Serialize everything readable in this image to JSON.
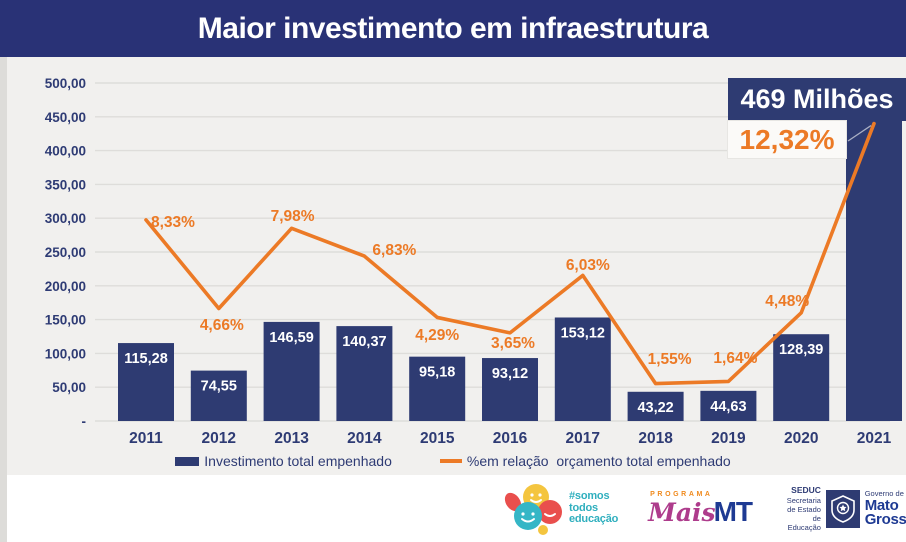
{
  "header": {
    "title": "Maior investimento em infraestrutura"
  },
  "chart_data": {
    "type": "bar",
    "subtype": "combo-bar-line",
    "title": "Maior investimento em infraestrutura",
    "categories": [
      "2011",
      "2012",
      "2013",
      "2014",
      "2015",
      "2016",
      "2017",
      "2018",
      "2019",
      "2020",
      "2021"
    ],
    "series": [
      {
        "name": "Investimento total empenhado",
        "type": "bar",
        "values": [
          115.28,
          74.55,
          146.59,
          140.37,
          95.18,
          93.12,
          153.12,
          43.22,
          44.63,
          128.39,
          469
        ],
        "labels": [
          "115,28",
          "74,55",
          "146,59",
          "140,37",
          "95,18",
          "93,12",
          "153,12",
          "43,22",
          "44,63",
          "128,39",
          ""
        ]
      },
      {
        "name": "%em relação  orçamento total empenhado",
        "type": "line",
        "values": [
          8.33,
          4.66,
          7.98,
          6.83,
          4.29,
          3.65,
          6.03,
          1.55,
          1.64,
          4.48,
          12.32
        ],
        "labels": [
          "8,33%",
          "4,66%",
          "7,98%",
          "6,83%",
          "4,29%",
          "3,65%",
          "6,03%",
          "1,55%",
          "1,64%",
          "4,48%",
          ""
        ]
      }
    ],
    "y_axis": {
      "min": 0,
      "max": 500,
      "tick_labels": [
        "500,00",
        "450,00",
        "400,00",
        "350,00",
        "300,00",
        "250,00",
        "200,00",
        "150,00",
        "100,00",
        "50,00",
        "-"
      ]
    },
    "y2_axis": {
      "min": 0,
      "max": 14,
      "visible": false
    },
    "grid": true,
    "legend_position": "bottom",
    "callout": {
      "value_label": "469 Milhões",
      "pct_label": "12,32%"
    },
    "colors": {
      "bar": "#2E3B72",
      "line": "#EC7A26",
      "axis_text": "#2E3B74",
      "bar_label": "#FFFFFF",
      "grid": "#DEDDDA",
      "header": "#293276"
    }
  },
  "legend": {
    "bar_label": "Investimento total empenhado",
    "line_label": "%em relação  orçamento total empenhado"
  },
  "footer": {
    "somos": {
      "line1": "#somos",
      "line2": "todos",
      "line3": "educação"
    },
    "maismt": {
      "programa": "PROGRAMA",
      "mais": "Mais",
      "mt": "MT"
    },
    "seduc": {
      "name": "SEDUC",
      "line1": "Secretaria",
      "line2": "de Estado",
      "line3": "de Educação",
      "gov": "Governo de",
      "state1": "Mato",
      "state2": "Grosso"
    }
  }
}
